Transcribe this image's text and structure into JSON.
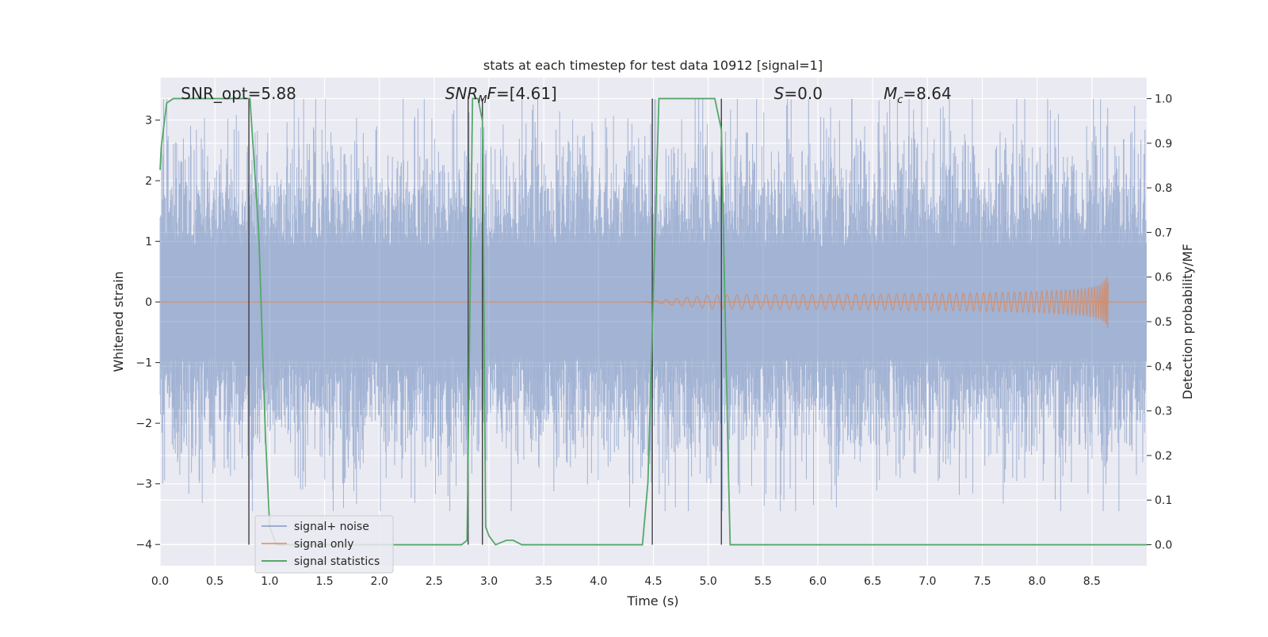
{
  "chart_data": {
    "type": "line",
    "title": "stats at each timestep for test data 10912 [signal=1]",
    "xlabel": "Time (s)",
    "ylabel": "Whitened strain",
    "y2label": "Detection probability/MF",
    "xlim": [
      0,
      9
    ],
    "ylim": [
      -4.35,
      3.7
    ],
    "y2lim": [
      -0.047,
      1.047
    ],
    "xticks": [
      0.0,
      0.5,
      1.0,
      1.5,
      2.0,
      2.5,
      3.0,
      3.5,
      4.0,
      4.5,
      5.0,
      5.5,
      6.0,
      6.5,
      7.0,
      7.5,
      8.0,
      8.5
    ],
    "yticks": [
      3,
      2,
      1,
      0,
      -1,
      -2,
      -3,
      -4
    ],
    "y2ticks": [
      1.0,
      0.9,
      0.8,
      0.7,
      0.6,
      0.5,
      0.4,
      0.3,
      0.2,
      0.1,
      0.0
    ],
    "grid": true,
    "legend_position": "lower-left",
    "annotations": [
      {
        "text": "SNR_opt=5.88",
        "x": 0.19
      },
      {
        "text": "SNR_MF=[4.61]",
        "x": 2.6
      },
      {
        "text": "S=0.0",
        "x": 5.6
      },
      {
        "text": "M_c=8.64",
        "x": 6.6
      }
    ],
    "series": [
      {
        "name": "signal+ noise",
        "color": "#4c72b0",
        "description_range": [
          -3.45,
          3.35
        ]
      },
      {
        "name": "signal only",
        "color": "#dd8452",
        "chirp_start": 4.4,
        "chirp_end": 8.65,
        "peak_amplitude": 0.7
      },
      {
        "name": "signal statistics",
        "color": "#55a868",
        "x": [
          0.0,
          0.01,
          0.06,
          0.12,
          0.78,
          0.82,
          0.9,
          0.96,
          1.0,
          1.06,
          1.2,
          2.6,
          2.75,
          2.8,
          2.85,
          2.9,
          2.94,
          2.97,
          3.0,
          3.06,
          3.16,
          3.22,
          3.3,
          4.4,
          4.45,
          4.55,
          5.06,
          5.12,
          5.18,
          5.2,
          5.26,
          9.0
        ],
        "y": [
          0.84,
          0.89,
          0.99,
          1.0,
          1.0,
          1.0,
          0.7,
          0.25,
          0.04,
          0.0,
          0.0,
          0.0,
          0.0,
          0.01,
          1.0,
          1.0,
          0.95,
          0.04,
          0.02,
          0.0,
          0.01,
          0.01,
          0.0,
          0.0,
          0.14,
          1.0,
          1.0,
          0.93,
          0.21,
          0.0,
          0.0,
          0.0
        ]
      }
    ],
    "vertical_markers": [
      0.81,
      2.81,
      2.94,
      4.49,
      5.12
    ],
    "legend": [
      {
        "label": "signal+ noise",
        "color": "#4c72b0"
      },
      {
        "label": "signal only",
        "color": "#dd8452"
      },
      {
        "label": "signal statistics",
        "color": "#55a868"
      }
    ]
  }
}
